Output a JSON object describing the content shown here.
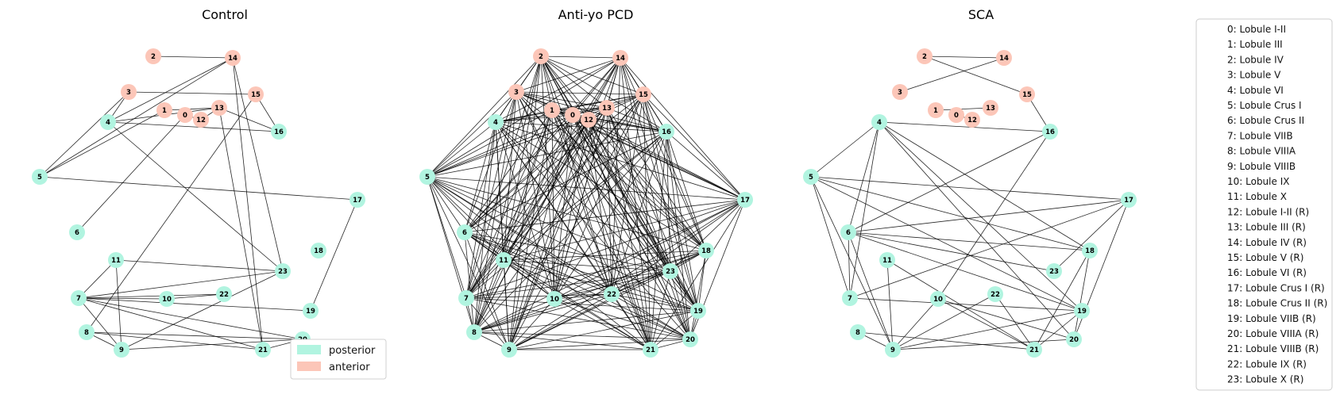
{
  "colors": {
    "posterior": "#b1f4e0",
    "anterior": "#fcc6b8"
  },
  "panels": [
    {
      "title": "Control",
      "edges": [
        [
          2,
          14
        ],
        [
          14,
          4
        ],
        [
          14,
          5
        ],
        [
          14,
          21
        ],
        [
          14,
          23
        ],
        [
          3,
          15
        ],
        [
          3,
          4
        ],
        [
          3,
          5
        ],
        [
          15,
          16
        ],
        [
          15,
          8
        ],
        [
          1,
          13
        ],
        [
          1,
          5
        ],
        [
          4,
          13
        ],
        [
          4,
          16
        ],
        [
          4,
          23
        ],
        [
          0,
          12
        ],
        [
          0,
          6
        ],
        [
          13,
          12
        ],
        [
          13,
          16
        ],
        [
          13,
          21
        ],
        [
          5,
          17
        ],
        [
          17,
          19
        ],
        [
          11,
          7
        ],
        [
          11,
          9
        ],
        [
          11,
          23
        ],
        [
          7,
          23
        ],
        [
          7,
          10
        ],
        [
          7,
          22
        ],
        [
          7,
          19
        ],
        [
          7,
          21
        ],
        [
          7,
          20
        ],
        [
          7,
          9
        ],
        [
          8,
          9
        ],
        [
          8,
          20
        ],
        [
          8,
          21
        ],
        [
          9,
          23
        ],
        [
          10,
          22
        ],
        [
          21,
          20
        ],
        [
          9,
          20
        ]
      ]
    },
    {
      "title": "Anti-yo PCD",
      "edges": "dense"
    },
    {
      "title": "SCA",
      "edges": [
        [
          2,
          14
        ],
        [
          2,
          15
        ],
        [
          3,
          14
        ],
        [
          1,
          13
        ],
        [
          0,
          12
        ],
        [
          15,
          16
        ],
        [
          16,
          6
        ],
        [
          16,
          10
        ],
        [
          4,
          16
        ],
        [
          4,
          6
        ],
        [
          4,
          7
        ],
        [
          4,
          19
        ],
        [
          4,
          20
        ],
        [
          4,
          18
        ],
        [
          4,
          5
        ],
        [
          5,
          17
        ],
        [
          5,
          7
        ],
        [
          5,
          9
        ],
        [
          5,
          18
        ],
        [
          5,
          19
        ],
        [
          6,
          17
        ],
        [
          6,
          18
        ],
        [
          6,
          19
        ],
        [
          6,
          23
        ],
        [
          6,
          7
        ],
        [
          6,
          9
        ],
        [
          7,
          17
        ],
        [
          7,
          19
        ],
        [
          11,
          9
        ],
        [
          11,
          21
        ],
        [
          10,
          9
        ],
        [
          10,
          21
        ],
        [
          10,
          20
        ],
        [
          22,
          9
        ],
        [
          22,
          21
        ],
        [
          8,
          9
        ],
        [
          8,
          21
        ],
        [
          9,
          19
        ],
        [
          9,
          20
        ],
        [
          17,
          20
        ],
        [
          17,
          23
        ],
        [
          18,
          21
        ],
        [
          18,
          20
        ],
        [
          19,
          21
        ]
      ]
    }
  ],
  "legend": {
    "posterior": "posterior",
    "anterior": "anterior"
  },
  "key": [
    "0: Lobule I-II",
    "1: Lobule III",
    "2: Lobule IV",
    "3: Lobule V",
    "4: Lobule VI",
    "5: Lobule Crus I",
    "6: Lobule Crus II",
    "7: Lobule VIIB",
    "8: Lobule VIIIA",
    "9: Lobule VIIIB",
    "10: Lobule IX",
    "11: Lobule X",
    "12: Lobule I-II (R)",
    "13: Lobule III (R)",
    "14: Lobule IV (R)",
    "15: Lobule V (R)",
    "16: Lobule VI (R)",
    "17: Lobule Crus I (R)",
    "18: Lobule Crus II (R)",
    "19: Lobule VIIB (R)",
    "20: Lobule VIIIA (R)",
    "21: Lobule VIIIB (R)",
    "22: Lobule IX (R)",
    "23: Lobule X (R)"
  ]
}
